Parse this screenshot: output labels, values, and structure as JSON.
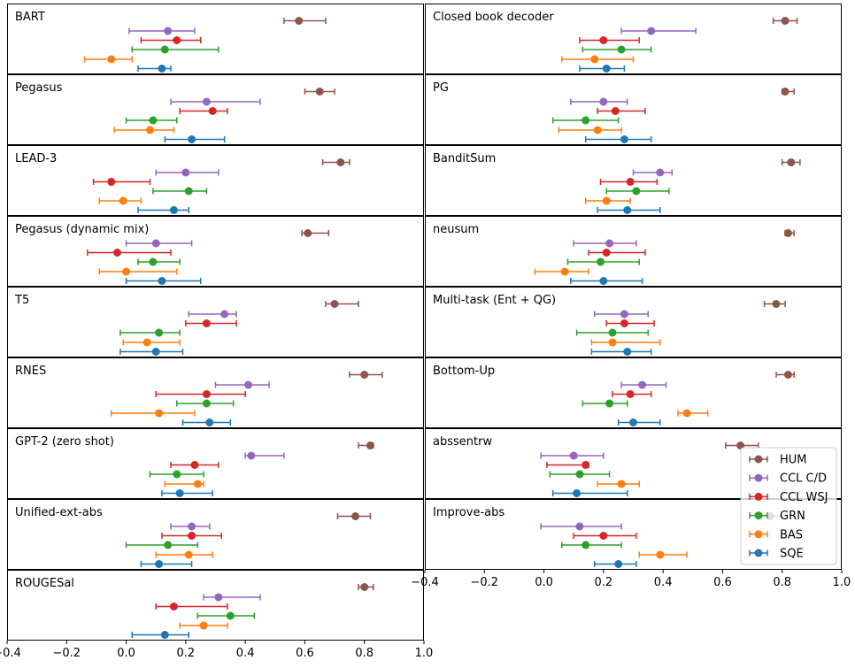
{
  "chart_data": {
    "type": "errorbar",
    "xlim": [
      -0.4,
      1.0
    ],
    "x_ticks": [
      -0.4,
      -0.2,
      0.0,
      0.2,
      0.4,
      0.6,
      0.8,
      1.0
    ],
    "x_tick_labels": [
      "−0.4",
      "−0.2",
      "0.0",
      "0.2",
      "0.4",
      "0.6",
      "0.8",
      "1.0"
    ],
    "series": [
      {
        "name": "HUM",
        "color": "#8c564b"
      },
      {
        "name": "CCL C/D",
        "color": "#9467bd"
      },
      {
        "name": "CCL WSJ",
        "color": "#d62728"
      },
      {
        "name": "GRN",
        "color": "#2ca02c"
      },
      {
        "name": "BAS",
        "color": "#ff7f0e"
      },
      {
        "name": "SQE",
        "color": "#1f77b4"
      }
    ],
    "legend": {
      "location": "lower-right of right column",
      "entries": [
        "HUM",
        "CCL C/D",
        "CCL WSJ",
        "GRN",
        "BAS",
        "SQE"
      ]
    },
    "panels": [
      {
        "title": "BART",
        "column": 0,
        "row": 0,
        "points": [
          [
            0.58,
            0.53,
            0.67
          ],
          [
            0.14,
            0.01,
            0.23
          ],
          [
            0.17,
            0.05,
            0.25
          ],
          [
            0.13,
            0.02,
            0.31
          ],
          [
            -0.05,
            -0.14,
            0.02
          ],
          [
            0.12,
            0.04,
            0.15
          ]
        ]
      },
      {
        "title": "Pegasus",
        "column": 0,
        "row": 1,
        "points": [
          [
            0.65,
            0.6,
            0.7
          ],
          [
            0.27,
            0.15,
            0.45
          ],
          [
            0.29,
            0.18,
            0.34
          ],
          [
            0.09,
            0.0,
            0.17
          ],
          [
            0.08,
            -0.04,
            0.16
          ],
          [
            0.22,
            0.13,
            0.33
          ]
        ]
      },
      {
        "title": "LEAD-3",
        "column": 0,
        "row": 2,
        "points": [
          [
            0.72,
            0.66,
            0.75
          ],
          [
            0.2,
            0.1,
            0.31
          ],
          [
            -0.05,
            -0.11,
            0.08
          ],
          [
            0.21,
            0.09,
            0.27
          ],
          [
            -0.01,
            -0.09,
            0.05
          ],
          [
            0.16,
            0.04,
            0.21
          ]
        ]
      },
      {
        "title": "Pegasus (dynamic mix)",
        "column": 0,
        "row": 3,
        "points": [
          [
            0.61,
            0.59,
            0.68
          ],
          [
            0.1,
            0.0,
            0.22
          ],
          [
            -0.03,
            -0.13,
            0.15
          ],
          [
            0.09,
            0.04,
            0.18
          ],
          [
            0.0,
            -0.09,
            0.17
          ],
          [
            0.12,
            0.0,
            0.25
          ]
        ]
      },
      {
        "title": "T5",
        "column": 0,
        "row": 4,
        "points": [
          [
            0.7,
            0.67,
            0.78
          ],
          [
            0.33,
            0.21,
            0.37
          ],
          [
            0.27,
            0.2,
            0.37
          ],
          [
            0.11,
            -0.02,
            0.18
          ],
          [
            0.07,
            -0.01,
            0.18
          ],
          [
            0.1,
            -0.02,
            0.19
          ]
        ]
      },
      {
        "title": "RNES",
        "column": 0,
        "row": 5,
        "points": [
          [
            0.8,
            0.75,
            0.86
          ],
          [
            0.41,
            0.3,
            0.48
          ],
          [
            0.27,
            0.1,
            0.4
          ],
          [
            0.27,
            0.17,
            0.36
          ],
          [
            0.11,
            -0.05,
            0.23
          ],
          [
            0.28,
            0.19,
            0.35
          ]
        ]
      },
      {
        "title": "GPT-2 (zero shot)",
        "column": 0,
        "row": 6,
        "points": [
          [
            0.82,
            0.78,
            0.83
          ],
          [
            0.42,
            0.4,
            0.53
          ],
          [
            0.23,
            0.15,
            0.31
          ],
          [
            0.17,
            0.08,
            0.26
          ],
          [
            0.24,
            0.13,
            0.26
          ],
          [
            0.18,
            0.12,
            0.29
          ]
        ]
      },
      {
        "title": "Unified-ext-abs",
        "column": 0,
        "row": 7,
        "points": [
          [
            0.77,
            0.71,
            0.82
          ],
          [
            0.22,
            0.15,
            0.28
          ],
          [
            0.22,
            0.12,
            0.32
          ],
          [
            0.14,
            0.0,
            0.24
          ],
          [
            0.21,
            0.1,
            0.29
          ],
          [
            0.11,
            0.05,
            0.22
          ]
        ]
      },
      {
        "title": "ROUGESal",
        "column": 0,
        "row": 8,
        "points": [
          [
            0.8,
            0.78,
            0.83
          ],
          [
            0.31,
            0.26,
            0.45
          ],
          [
            0.16,
            0.1,
            0.34
          ],
          [
            0.35,
            0.24,
            0.43
          ],
          [
            0.26,
            0.18,
            0.34
          ],
          [
            0.13,
            0.02,
            0.21
          ]
        ]
      },
      {
        "title": "Closed book decoder",
        "column": 1,
        "row": 0,
        "points": [
          [
            0.81,
            0.77,
            0.85
          ],
          [
            0.36,
            0.26,
            0.51
          ],
          [
            0.2,
            0.12,
            0.32
          ],
          [
            0.26,
            0.13,
            0.36
          ],
          [
            0.17,
            0.06,
            0.3
          ],
          [
            0.21,
            0.12,
            0.27
          ]
        ]
      },
      {
        "title": "PG",
        "column": 1,
        "row": 1,
        "points": [
          [
            0.81,
            0.8,
            0.84
          ],
          [
            0.2,
            0.09,
            0.28
          ],
          [
            0.24,
            0.18,
            0.34
          ],
          [
            0.14,
            0.03,
            0.25
          ],
          [
            0.18,
            0.05,
            0.26
          ],
          [
            0.27,
            0.14,
            0.36
          ]
        ]
      },
      {
        "title": "BanditSum",
        "column": 1,
        "row": 2,
        "points": [
          [
            0.83,
            0.8,
            0.86
          ],
          [
            0.39,
            0.3,
            0.43
          ],
          [
            0.29,
            0.19,
            0.38
          ],
          [
            0.31,
            0.21,
            0.42
          ],
          [
            0.21,
            0.14,
            0.29
          ],
          [
            0.28,
            0.18,
            0.39
          ]
        ]
      },
      {
        "title": "neusum",
        "column": 1,
        "row": 3,
        "points": [
          [
            0.82,
            0.81,
            0.84
          ],
          [
            0.22,
            0.1,
            0.31
          ],
          [
            0.21,
            0.15,
            0.34
          ],
          [
            0.19,
            0.08,
            0.32
          ],
          [
            0.07,
            -0.03,
            0.15
          ],
          [
            0.2,
            0.09,
            0.33
          ]
        ]
      },
      {
        "title": "Multi-task (Ent + QG)",
        "column": 1,
        "row": 4,
        "points": [
          [
            0.78,
            0.74,
            0.81
          ],
          [
            0.27,
            0.17,
            0.35
          ],
          [
            0.27,
            0.21,
            0.37
          ],
          [
            0.23,
            0.11,
            0.35
          ],
          [
            0.23,
            0.16,
            0.39
          ],
          [
            0.28,
            0.16,
            0.36
          ]
        ]
      },
      {
        "title": "Bottom-Up",
        "column": 1,
        "row": 5,
        "points": [
          [
            0.82,
            0.78,
            0.84
          ],
          [
            0.33,
            0.26,
            0.41
          ],
          [
            0.29,
            0.23,
            0.36
          ],
          [
            0.22,
            0.13,
            0.28
          ],
          [
            0.48,
            0.45,
            0.55
          ],
          [
            0.3,
            0.25,
            0.39
          ]
        ]
      },
      {
        "title": "abssentrw",
        "column": 1,
        "row": 6,
        "points": [
          [
            0.66,
            0.61,
            0.72
          ],
          [
            0.1,
            -0.01,
            0.2
          ],
          [
            0.14,
            0.01,
            0.15
          ],
          [
            0.12,
            0.02,
            0.22
          ],
          [
            0.26,
            0.18,
            0.32
          ],
          [
            0.11,
            0.03,
            0.28
          ]
        ]
      },
      {
        "title": "Improve-abs",
        "column": 1,
        "row": 7,
        "points": [
          [
            0.76,
            0.73,
            0.8
          ],
          [
            0.12,
            -0.01,
            0.26
          ],
          [
            0.2,
            0.1,
            0.31
          ],
          [
            0.14,
            0.06,
            0.26
          ],
          [
            0.39,
            0.32,
            0.48
          ],
          [
            0.25,
            0.17,
            0.31
          ]
        ]
      }
    ]
  }
}
